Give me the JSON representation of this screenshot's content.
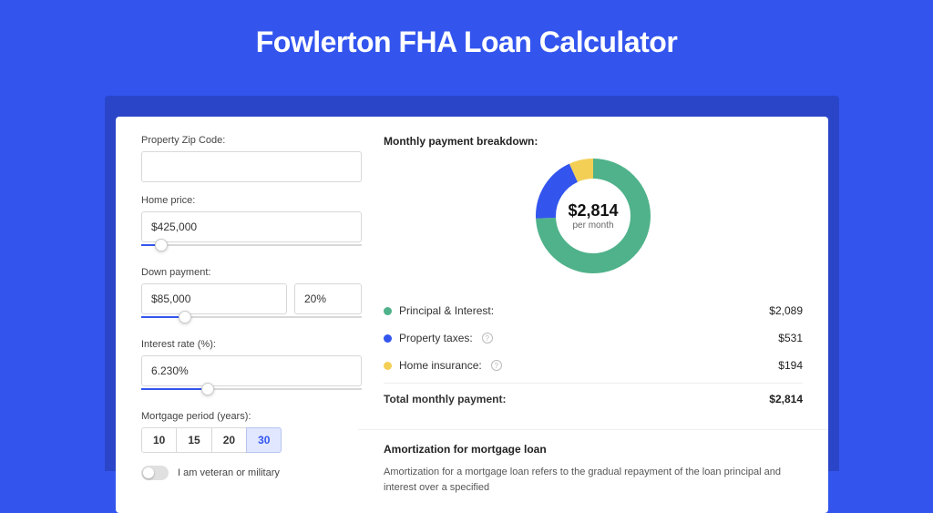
{
  "title": "Fowlerton FHA Loan Calculator",
  "colors": {
    "page_bg": "#3355ee",
    "shadow_bg": "#2a45c8",
    "card_bg": "#ffffff",
    "accent": "#3355ee"
  },
  "form": {
    "zip": {
      "label": "Property Zip Code:",
      "value": ""
    },
    "home_price": {
      "label": "Home price:",
      "value": "$425,000",
      "slider_pct": 9
    },
    "down_payment": {
      "label": "Down payment:",
      "value": "$85,000",
      "pct_value": "20%",
      "slider_pct": 20
    },
    "interest_rate": {
      "label": "Interest rate (%):",
      "value": "6.230%",
      "slider_pct": 30
    },
    "mortgage_period": {
      "label": "Mortgage period (years):",
      "options": [
        "10",
        "15",
        "20",
        "30"
      ],
      "selected": "30"
    },
    "veteran": {
      "label": "I am veteran or military",
      "checked": false
    }
  },
  "breakdown": {
    "title": "Monthly payment breakdown:",
    "total_amount": "$2,814",
    "per_month_label": "per month",
    "donut": {
      "segments": [
        {
          "name": "Principal & Interest",
          "value": 2089,
          "color": "#4fb28a",
          "fraction": 0.742
        },
        {
          "name": "Property taxes",
          "value": 531,
          "color": "#3355ee",
          "fraction": 0.189
        },
        {
          "name": "Home insurance",
          "value": 194,
          "color": "#f3cf55",
          "fraction": 0.069
        }
      ],
      "stroke_width": 22,
      "radius": 52
    },
    "rows": [
      {
        "label": "Principal & Interest:",
        "value": "$2,089",
        "color": "#4fb28a",
        "info": false
      },
      {
        "label": "Property taxes:",
        "value": "$531",
        "color": "#3355ee",
        "info": true
      },
      {
        "label": "Home insurance:",
        "value": "$194",
        "color": "#f3cf55",
        "info": true
      }
    ],
    "total_row": {
      "label": "Total monthly payment:",
      "value": "$2,814"
    }
  },
  "amortization": {
    "title": "Amortization for mortgage loan",
    "text": "Amortization for a mortgage loan refers to the gradual repayment of the loan principal and interest over a specified"
  }
}
